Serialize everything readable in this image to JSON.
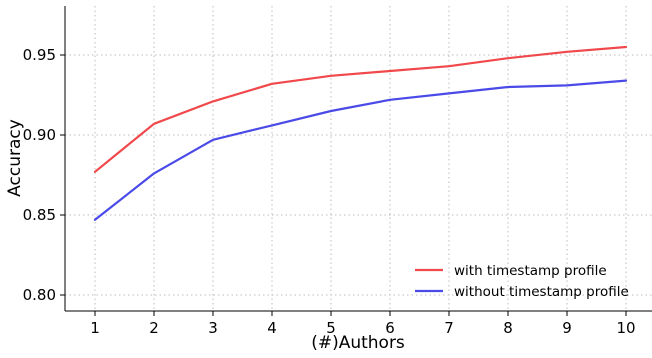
{
  "chart_data": {
    "type": "line",
    "xlabel": "(#)Authors",
    "ylabel": "Accuracy",
    "x": [
      1,
      2,
      3,
      4,
      5,
      6,
      7,
      8,
      9,
      10
    ],
    "x_ticks": [
      "1",
      "2",
      "3",
      "4",
      "5",
      "6",
      "7",
      "8",
      "9",
      "10"
    ],
    "y_ticks": [
      "0.80",
      "0.85",
      "0.90",
      "0.95"
    ],
    "y_tick_values": [
      0.8,
      0.85,
      0.9,
      0.95
    ],
    "xlim": [
      0.5,
      10.5
    ],
    "ylim": [
      0.79,
      0.98
    ],
    "grid": true,
    "legend_position": "bottom-right",
    "series": [
      {
        "name": "with timestamp profile",
        "color": "#f0484b",
        "values": [
          0.877,
          0.907,
          0.921,
          0.932,
          0.937,
          0.94,
          0.943,
          0.948,
          0.952,
          0.955
        ]
      },
      {
        "name": "without timestamp profile",
        "color": "#4a4ae8",
        "values": [
          0.847,
          0.876,
          0.897,
          0.906,
          0.915,
          0.922,
          0.926,
          0.93,
          0.931,
          0.934
        ]
      }
    ]
  }
}
